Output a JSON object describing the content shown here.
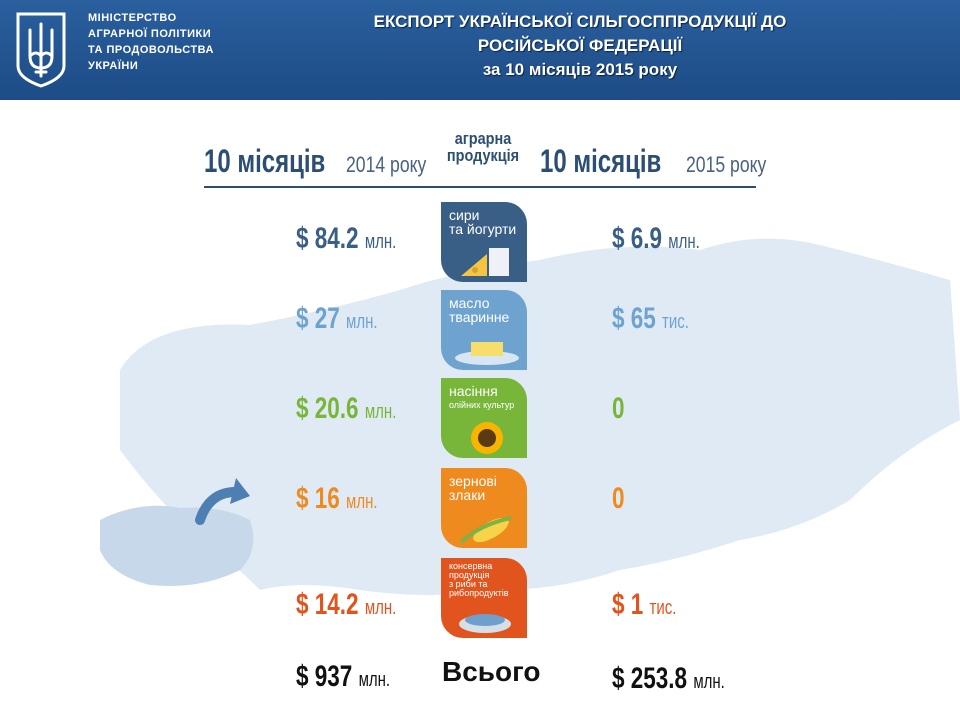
{
  "header": {
    "ministry_lines": [
      "МІНІСТЕРСТВО",
      "АГРАРНОЇ ПОЛІТИКИ",
      "ТА ПРОДОВОЛЬСТВА",
      "УКРАЇНИ"
    ],
    "title_lines": [
      "ЕКСПОРТ УКРАЇНСЬКОЇ  СІЛЬГОСППРОДУКЦІЇ ДО",
      "РОСІЙСЬКОЇ ФЕДЕРАЦІЇ",
      "за 10 місяців 2015 року"
    ]
  },
  "columns": {
    "left": {
      "big": "10 місяців",
      "small": "2014 року"
    },
    "center": [
      "аграрна",
      "продукція"
    ],
    "right": {
      "big": "10 місяців",
      "small": "2015 року"
    }
  },
  "rows": [
    {
      "label_lines": [
        "сири",
        "та йогурти"
      ],
      "v2014": "$ 84.2",
      "u2014": "млн.",
      "v2015": "$ 6.9",
      "u2015": "млн.",
      "color": "#3a5f86"
    },
    {
      "label_lines": [
        "масло",
        "тваринне"
      ],
      "v2014": "$ 27",
      "u2014": "млн.",
      "v2015": "$ 65",
      "u2015": "тис.",
      "color": "#6ea3cf"
    },
    {
      "label_lines": [
        "насіння",
        "олійних культур"
      ],
      "v2014": "$ 20.6",
      "u2014": "млн.",
      "v2015": "0",
      "u2015": "",
      "color": "#78b63a"
    },
    {
      "label_lines": [
        "зернові",
        "злаки"
      ],
      "v2014": "$ 16",
      "u2014": "млн.",
      "v2015": "0",
      "u2015": "",
      "color": "#ee8a1e"
    },
    {
      "label_lines": [
        "консервна",
        "продукція",
        "з риби та",
        "рибопродуктів"
      ],
      "v2014": "$ 14.2",
      "u2014": "млн.",
      "v2015": "$ 1",
      "u2015": "тис.",
      "color": "#e2541e"
    }
  ],
  "totals": {
    "label": "Всього",
    "v2014": "$ 937",
    "u2014": "млн.",
    "v2015": "$ 253.8",
    "u2015": "млн."
  }
}
